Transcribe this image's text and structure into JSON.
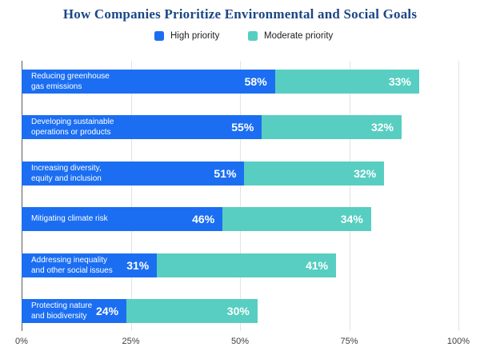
{
  "title": "How Companies Prioritize Environmental and Social Goals",
  "legend": [
    {
      "label": "High priority",
      "color": "#1b6ef2"
    },
    {
      "label": "Moderate priority",
      "color": "#57cec1"
    }
  ],
  "chart_data": {
    "type": "bar",
    "orientation": "horizontal",
    "stacked": true,
    "title": "How Companies Prioritize Environmental and Social Goals",
    "categories": [
      "Reducing greenhouse\ngas emissions",
      "Developing sustainable\noperations or products",
      "Increasing diversity,\nequity and inclusion",
      "Mitigating climate risk",
      "Addressing inequality\nand other social issues",
      "Protecting nature\nand biodiversity"
    ],
    "series": [
      {
        "name": "High priority",
        "color": "#1b6ef2",
        "values": [
          58,
          55,
          51,
          46,
          31,
          24
        ]
      },
      {
        "name": "Moderate priority",
        "color": "#57cec1",
        "values": [
          33,
          32,
          32,
          34,
          41,
          30
        ]
      }
    ],
    "value_suffix": "%",
    "x_ticks": [
      "0%",
      "25%",
      "50%",
      "75%",
      "100%"
    ],
    "xlim": [
      0,
      100
    ],
    "grid": "vertical",
    "legend_position": "top",
    "value_labels": "inside-end",
    "category_labels": "inside-start"
  }
}
